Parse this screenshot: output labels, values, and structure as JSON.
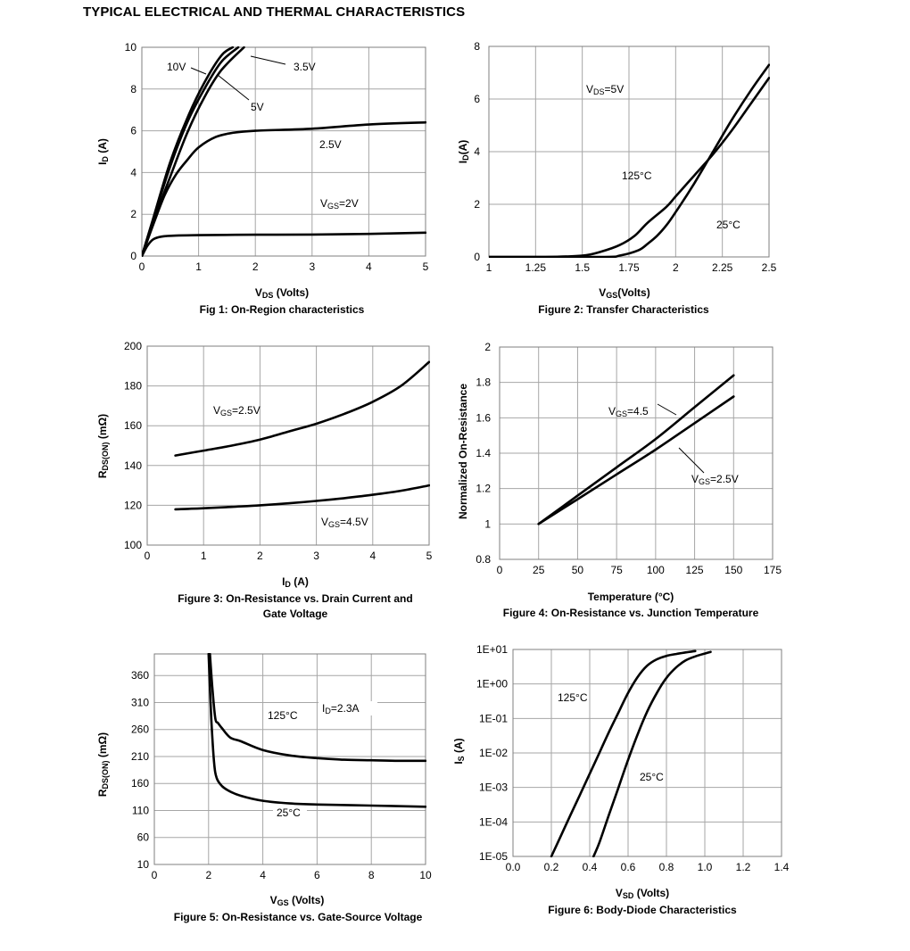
{
  "page_title": "TYPICAL ELECTRICAL AND THERMAL CHARACTERISTICS",
  "chart_data": [
    {
      "id": "fig1",
      "type": "line",
      "caption": "Fig 1: On-Region characteristics",
      "xlabel": "V DS (Volts)",
      "xlabel_main": "V",
      "xlabel_sub": "DS",
      "xlabel_rest": " (Volts)",
      "ylabel_main": "I",
      "ylabel_sub": "D",
      "ylabel_rest": " (A)",
      "xlim": [
        0,
        5
      ],
      "ylim": [
        0,
        10
      ],
      "xticks": [
        0,
        1,
        2,
        3,
        4,
        5
      ],
      "xtick_labels": [
        "0",
        "1",
        "2",
        "3",
        "4",
        "5"
      ],
      "yticks": [
        0,
        2,
        4,
        6,
        8,
        10
      ],
      "ytick_labels": [
        "0",
        "2",
        "4",
        "6",
        "8",
        "10"
      ],
      "grid": true,
      "series": [
        {
          "label": "10V",
          "x": [
            0,
            0.2,
            0.5,
            0.8,
            1.1,
            1.4,
            1.6
          ],
          "y": [
            0,
            1.8,
            4.5,
            6.6,
            8.3,
            9.6,
            10
          ]
        },
        {
          "label": "5V",
          "x": [
            0,
            0.2,
            0.5,
            0.8,
            1.1,
            1.4,
            1.7
          ],
          "y": [
            0,
            1.75,
            4.3,
            6.4,
            8.0,
            9.3,
            10
          ]
        },
        {
          "label": "3.5V",
          "x": [
            0,
            0.2,
            0.5,
            0.8,
            1.1,
            1.4,
            1.8
          ],
          "y": [
            0,
            1.6,
            3.8,
            5.9,
            7.6,
            8.9,
            10
          ]
        },
        {
          "label": "2.5V",
          "x": [
            0,
            0.2,
            0.4,
            0.6,
            0.8,
            1.0,
            1.3,
            1.6,
            2.0,
            3.0,
            4.0,
            5.0
          ],
          "y": [
            0,
            1.5,
            2.9,
            3.9,
            4.6,
            5.2,
            5.7,
            5.9,
            6.0,
            6.1,
            6.3,
            6.4
          ]
        },
        {
          "label": "VGS=2V",
          "x": [
            0,
            0.1,
            0.2,
            0.35,
            0.6,
            1.0,
            2.0,
            3.0,
            4.0,
            5.0
          ],
          "y": [
            0,
            0.5,
            0.8,
            0.93,
            0.98,
            1.0,
            1.02,
            1.03,
            1.06,
            1.12
          ]
        }
      ],
      "annotations": {
        "v10": "10V",
        "v35": "3.5V",
        "v5": "5V",
        "v25": "2.5V",
        "vgs2_main": "V",
        "vgs2_sub": "GS",
        "vgs2_rest": "=2V"
      }
    },
    {
      "id": "fig2",
      "type": "line",
      "caption": "Figure 2: Transfer Characteristics",
      "xlabel_main": "V",
      "xlabel_sub": "GS",
      "xlabel_rest": "(Volts)",
      "ylabel_main": "I",
      "ylabel_sub": "D",
      "ylabel_rest": "(A)",
      "xlim": [
        1,
        2.5
      ],
      "ylim": [
        0,
        8
      ],
      "xticks": [
        1,
        1.25,
        1.5,
        1.75,
        2,
        2.25,
        2.5
      ],
      "xtick_labels": [
        "1",
        "1.25",
        "1.5",
        "1.75",
        "2",
        "2.25",
        "2.5"
      ],
      "yticks": [
        0,
        2,
        4,
        6,
        8
      ],
      "ytick_labels": [
        "0",
        "2",
        "4",
        "6",
        "8"
      ],
      "grid": true,
      "series": [
        {
          "label": "125°C",
          "x": [
            1.0,
            1.3,
            1.5,
            1.6,
            1.7,
            1.78,
            1.85,
            1.95,
            2.0,
            2.1,
            2.2,
            2.3,
            2.4,
            2.5
          ],
          "y": [
            0,
            0,
            0.05,
            0.2,
            0.45,
            0.8,
            1.3,
            1.9,
            2.3,
            3.1,
            3.9,
            4.8,
            5.8,
            6.8
          ]
        },
        {
          "label": "25°C",
          "x": [
            1.0,
            1.6,
            1.7,
            1.8,
            1.85,
            1.9,
            1.95,
            2.0,
            2.1,
            2.2,
            2.3,
            2.4,
            2.5
          ],
          "y": [
            0,
            0,
            0.05,
            0.25,
            0.5,
            0.8,
            1.2,
            1.7,
            2.8,
            4.0,
            5.2,
            6.3,
            7.3
          ]
        }
      ],
      "annotations": {
        "vds_main": "V",
        "vds_sub": "DS",
        "vds_rest": "=5V",
        "t125": "125°C",
        "t25": "25°C"
      }
    },
    {
      "id": "fig3",
      "type": "line",
      "caption_line1": "Figure 3: On-Resistance vs. Drain Current and",
      "caption_line2": "Gate Voltage",
      "xlabel_main": "I",
      "xlabel_sub": "D",
      "xlabel_rest": " (A)",
      "ylabel_main": "R",
      "ylabel_sub": "DS(ON)",
      "ylabel_rest": " (mΩ)",
      "xlim": [
        0,
        5
      ],
      "ylim": [
        100,
        200
      ],
      "xticks": [
        0,
        1,
        2,
        3,
        4,
        5
      ],
      "xtick_labels": [
        "0",
        "1",
        "2",
        "3",
        "4",
        "5"
      ],
      "yticks": [
        100,
        120,
        140,
        160,
        180,
        200
      ],
      "ytick_labels": [
        "100",
        "120",
        "140",
        "160",
        "180",
        "200"
      ],
      "grid": true,
      "series": [
        {
          "label": "VGS=2.5V",
          "x": [
            0.5,
            1.0,
            1.5,
            2.0,
            2.5,
            3.0,
            3.5,
            4.0,
            4.5,
            5.0
          ],
          "y": [
            145,
            147.5,
            150,
            153,
            157,
            161,
            166,
            172,
            180,
            192
          ]
        },
        {
          "label": "VGS=4.5V",
          "x": [
            0.5,
            1.0,
            1.5,
            2.0,
            2.5,
            3.0,
            3.5,
            4.0,
            4.5,
            5.0
          ],
          "y": [
            118,
            118.5,
            119.2,
            120,
            121,
            122.2,
            123.6,
            125.3,
            127.3,
            130
          ]
        }
      ],
      "annotations": {
        "v25_main": "V",
        "v25_sub": "GS",
        "v25_rest": "=2.5V",
        "v45_main": "V",
        "v45_sub": "GS",
        "v45_rest": "=4.5V"
      }
    },
    {
      "id": "fig4",
      "type": "line",
      "caption": "Figure 4: On-Resistance vs. Junction Temperature",
      "xlabel": "Temperature (°C)",
      "ylabel": "Normalized On-Resistance",
      "xlim": [
        0,
        175
      ],
      "ylim": [
        0.8,
        2
      ],
      "xticks": [
        0,
        25,
        50,
        75,
        100,
        125,
        150,
        175
      ],
      "xtick_labels": [
        "0",
        "25",
        "50",
        "75",
        "100",
        "125",
        "150",
        "175"
      ],
      "yticks": [
        0.8,
        1,
        1.2,
        1.4,
        1.6,
        1.8,
        2
      ],
      "ytick_labels": [
        "0.8",
        "1",
        "1.2",
        "1.4",
        "1.6",
        "1.8",
        "2"
      ],
      "grid": true,
      "series": [
        {
          "label": "VGS=4.5",
          "x": [
            25,
            50,
            75,
            100,
            125,
            150
          ],
          "y": [
            1.0,
            1.16,
            1.32,
            1.48,
            1.66,
            1.84
          ]
        },
        {
          "label": "VGS=2.5V",
          "x": [
            25,
            50,
            75,
            100,
            125,
            150
          ],
          "y": [
            1.0,
            1.14,
            1.28,
            1.42,
            1.57,
            1.72
          ]
        }
      ],
      "annotations": {
        "v45_main": "V",
        "v45_sub": "GS",
        "v45_rest": "=4.5",
        "v25_main": "V",
        "v25_sub": "GS",
        "v25_rest": "=2.5V"
      }
    },
    {
      "id": "fig5",
      "type": "line",
      "caption": "Figure 5: On-Resistance vs. Gate-Source Voltage",
      "xlabel_main": "V",
      "xlabel_sub": "GS",
      "xlabel_rest": " (Volts)",
      "ylabel_main": "R",
      "ylabel_sub": "DS(ON)",
      "ylabel_rest": " (mΩ)",
      "xlim": [
        0,
        10
      ],
      "ylim": [
        10,
        400
      ],
      "xticks": [
        0,
        2,
        4,
        6,
        8,
        10
      ],
      "xtick_labels": [
        "0",
        "2",
        "4",
        "6",
        "8",
        "10"
      ],
      "yticks": [
        10,
        60,
        110,
        160,
        210,
        260,
        310,
        360
      ],
      "ytick_labels": [
        "10",
        "60",
        "110",
        "160",
        "210",
        "260",
        "310",
        "360"
      ],
      "grid": true,
      "series": [
        {
          "label": "125°C",
          "x": [
            2.05,
            2.15,
            2.25,
            2.35,
            2.5,
            2.8,
            3.2,
            4.0,
            5.0,
            6.0,
            7.0,
            8.0,
            9.0,
            10.0
          ],
          "y": [
            400,
            330,
            280,
            272,
            262,
            245,
            238,
            222,
            212,
            207,
            204,
            203,
            202,
            202
          ]
        },
        {
          "label": "25°C",
          "x": [
            2.0,
            2.1,
            2.2,
            2.3,
            2.5,
            2.8,
            3.2,
            4.0,
            5.0,
            6.0,
            8.0,
            10.0
          ],
          "y": [
            400,
            280,
            200,
            170,
            155,
            145,
            137,
            128,
            123,
            121,
            119,
            117
          ]
        }
      ],
      "annotations": {
        "t125": "125°C",
        "t25": "25°C",
        "id_main": "I",
        "id_sub": "D",
        "id_rest": "=2.3A"
      }
    },
    {
      "id": "fig6",
      "type": "line",
      "caption": "Figure 6: Body-Diode Characteristics",
      "xlabel_main": "V",
      "xlabel_sub": "SD",
      "xlabel_rest": " (Volts)",
      "ylabel_main": "I",
      "ylabel_sub": "S",
      "ylabel_rest": " (A)",
      "xlim": [
        0,
        1.4
      ],
      "ylim_log10": [
        -5,
        1
      ],
      "yscale": "log",
      "xticks": [
        0,
        0.2,
        0.4,
        0.6,
        0.8,
        1.0,
        1.2,
        1.4
      ],
      "xtick_labels": [
        "0.0",
        "0.2",
        "0.4",
        "0.6",
        "0.8",
        "1.0",
        "1.2",
        "1.4"
      ],
      "yticks_log10": [
        -5,
        -4,
        -3,
        -2,
        -1,
        0,
        1
      ],
      "ytick_labels": [
        "1E-05",
        "1E-04",
        "1E-03",
        "1E-02",
        "1E-01",
        "1E+00",
        "1E+01"
      ],
      "grid": true,
      "series": [
        {
          "label": "125°C",
          "x": [
            0.2,
            0.25,
            0.3,
            0.35,
            0.4,
            0.45,
            0.5,
            0.55,
            0.6,
            0.65,
            0.7,
            0.75,
            0.8,
            0.85,
            0.9,
            0.95
          ],
          "y": [
            1e-05,
            4e-05,
            0.00016,
            0.00063,
            0.0025,
            0.01,
            0.04,
            0.15,
            0.55,
            1.6,
            3.4,
            5.2,
            6.5,
            7.4,
            8.2,
            9
          ]
        },
        {
          "label": "25°C",
          "x": [
            0.42,
            0.45,
            0.5,
            0.55,
            0.6,
            0.65,
            0.7,
            0.75,
            0.8,
            0.85,
            0.9,
            0.95,
            1.0,
            1.03
          ],
          "y": [
            1e-05,
            2.5e-05,
            0.00016,
            0.001,
            0.0063,
            0.035,
            0.16,
            0.55,
            1.5,
            3.0,
            4.8,
            6.3,
            7.6,
            8.5
          ]
        }
      ],
      "annotations": {
        "t125": "125°C",
        "t25": "25°C"
      }
    }
  ]
}
